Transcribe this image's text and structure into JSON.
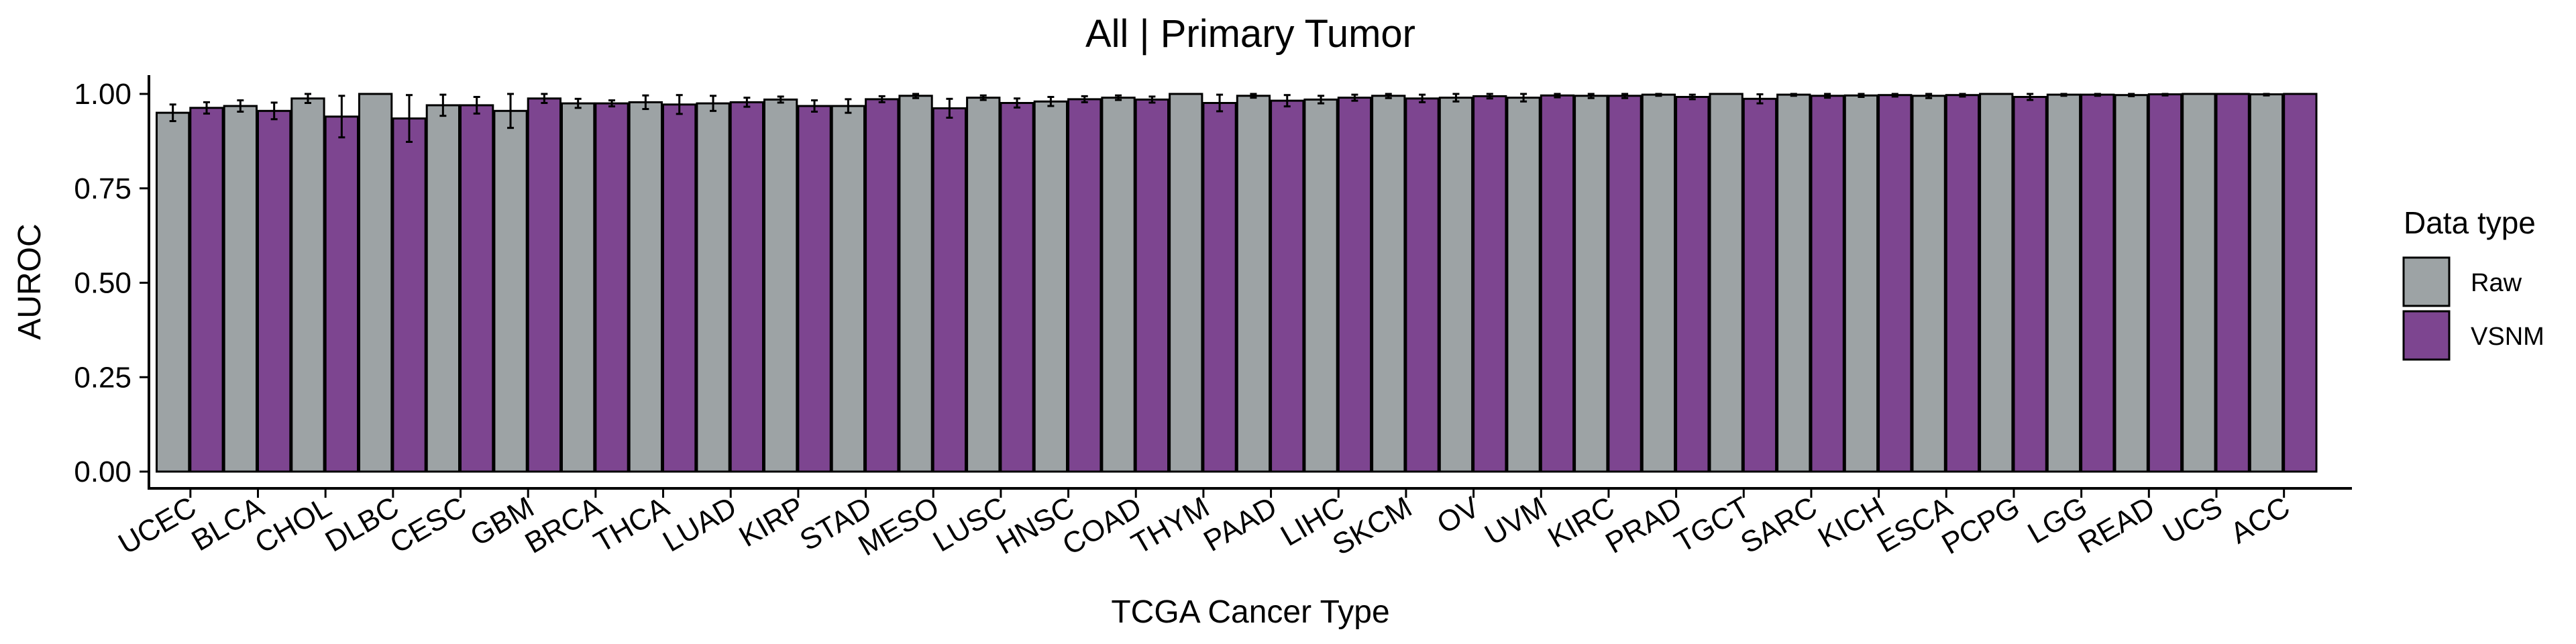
{
  "chart_data": {
    "type": "bar",
    "title": "All | Primary Tumor",
    "xlabel": "TCGA Cancer Type",
    "ylabel": "AUROC",
    "ylim": [
      0,
      1
    ],
    "yticks": [
      "0.00",
      "0.25",
      "0.50",
      "0.75",
      "1.00"
    ],
    "ytick_values": [
      0,
      0.25,
      0.5,
      0.75,
      1.0
    ],
    "grid": false,
    "legend": {
      "title": "Data type",
      "position": "right"
    },
    "categories": [
      "UCEC",
      "BLCA",
      "CHOL",
      "DLBC",
      "CESC",
      "GBM",
      "BRCA",
      "THCA",
      "LUAD",
      "KIRP",
      "STAD",
      "MESO",
      "LUSC",
      "HNSC",
      "COAD",
      "THYM",
      "PAAD",
      "LIHC",
      "SKCM",
      "OV",
      "UVM",
      "KIRC",
      "PRAD",
      "TGCT",
      "SARC",
      "KICH",
      "ESCA",
      "PCPG",
      "LGG",
      "READ",
      "UCS",
      "ACC"
    ],
    "series": [
      {
        "name": "Raw",
        "color": "#9da3a5",
        "values": [
          0.95,
          0.968,
          0.988,
          1.0,
          0.97,
          0.955,
          0.975,
          0.978,
          0.975,
          0.985,
          0.968,
          0.995,
          0.99,
          0.98,
          0.99,
          1.0,
          0.995,
          0.985,
          0.995,
          0.99,
          0.99,
          0.995,
          0.998,
          1.0,
          0.998,
          0.996,
          0.995,
          1.0,
          0.998,
          0.997,
          1.0,
          0.999
        ],
        "errors": [
          0.022,
          0.015,
          0.012,
          0.0,
          0.028,
          0.045,
          0.012,
          0.018,
          0.02,
          0.008,
          0.018,
          0.006,
          0.006,
          0.012,
          0.006,
          0.0,
          0.005,
          0.01,
          0.006,
          0.01,
          0.01,
          0.006,
          0.003,
          0.0,
          0.003,
          0.004,
          0.006,
          0.0,
          0.003,
          0.003,
          0.0,
          0.003
        ]
      },
      {
        "name": "VSNM",
        "color": "#7d4590",
        "values": [
          0.963,
          0.955,
          0.94,
          0.935,
          0.97,
          0.988,
          0.975,
          0.972,
          0.978,
          0.968,
          0.986,
          0.962,
          0.976,
          0.986,
          0.985,
          0.976,
          0.982,
          0.99,
          0.988,
          0.994,
          0.996,
          0.995,
          0.992,
          0.987,
          0.995,
          0.997,
          0.997,
          0.992,
          0.998,
          0.999,
          1.0,
          1.0
        ],
        "errors": [
          0.015,
          0.022,
          0.055,
          0.062,
          0.022,
          0.012,
          0.008,
          0.025,
          0.012,
          0.015,
          0.008,
          0.025,
          0.012,
          0.008,
          0.008,
          0.022,
          0.015,
          0.008,
          0.01,
          0.006,
          0.005,
          0.006,
          0.006,
          0.012,
          0.005,
          0.004,
          0.004,
          0.008,
          0.003,
          0.003,
          0.0,
          0.0
        ]
      }
    ]
  }
}
